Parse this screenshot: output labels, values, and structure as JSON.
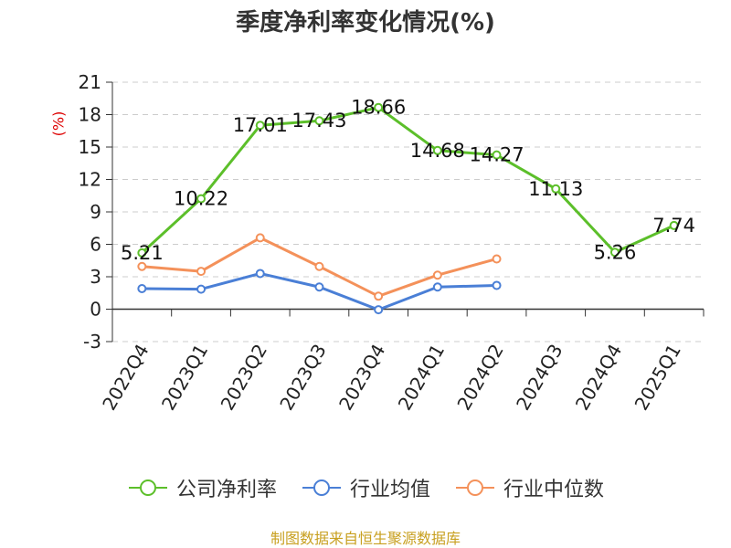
{
  "chart_data": {
    "type": "line",
    "title": "季度净利率变化情况(%)",
    "ylabel": "(%)",
    "categories": [
      "2022Q4",
      "2023Q1",
      "2023Q2",
      "2023Q3",
      "2023Q4",
      "2024Q1",
      "2024Q2",
      "2024Q3",
      "2024Q4",
      "2025Q1"
    ],
    "yticks": [
      21,
      18,
      15,
      12,
      9,
      6,
      3,
      0,
      -3
    ],
    "ylim": [
      -3,
      21
    ],
    "grid": true,
    "legend_position": "bottom",
    "series": [
      {
        "name": "公司净利率",
        "color": "#5cbf2a",
        "values": [
          5.21,
          10.22,
          17.01,
          17.43,
          18.66,
          14.68,
          14.27,
          11.13,
          5.26,
          7.74
        ],
        "labels": [
          "5.21",
          "10.22",
          "17.01",
          "17.43",
          "18.66",
          "14.68",
          "14.27",
          "11.13",
          "5.26",
          "7.74"
        ]
      },
      {
        "name": "行业均值",
        "color": "#4a7fd6",
        "values": [
          1.9,
          1.85,
          3.3,
          2.05,
          -0.05,
          2.05,
          2.2,
          null,
          null,
          null
        ]
      },
      {
        "name": "行业中位数",
        "color": "#f4915a",
        "values": [
          3.95,
          3.5,
          6.6,
          3.95,
          1.2,
          3.15,
          4.65,
          null,
          null,
          null
        ]
      }
    ]
  },
  "source_text": "制图数据来自恒生聚源数据库"
}
